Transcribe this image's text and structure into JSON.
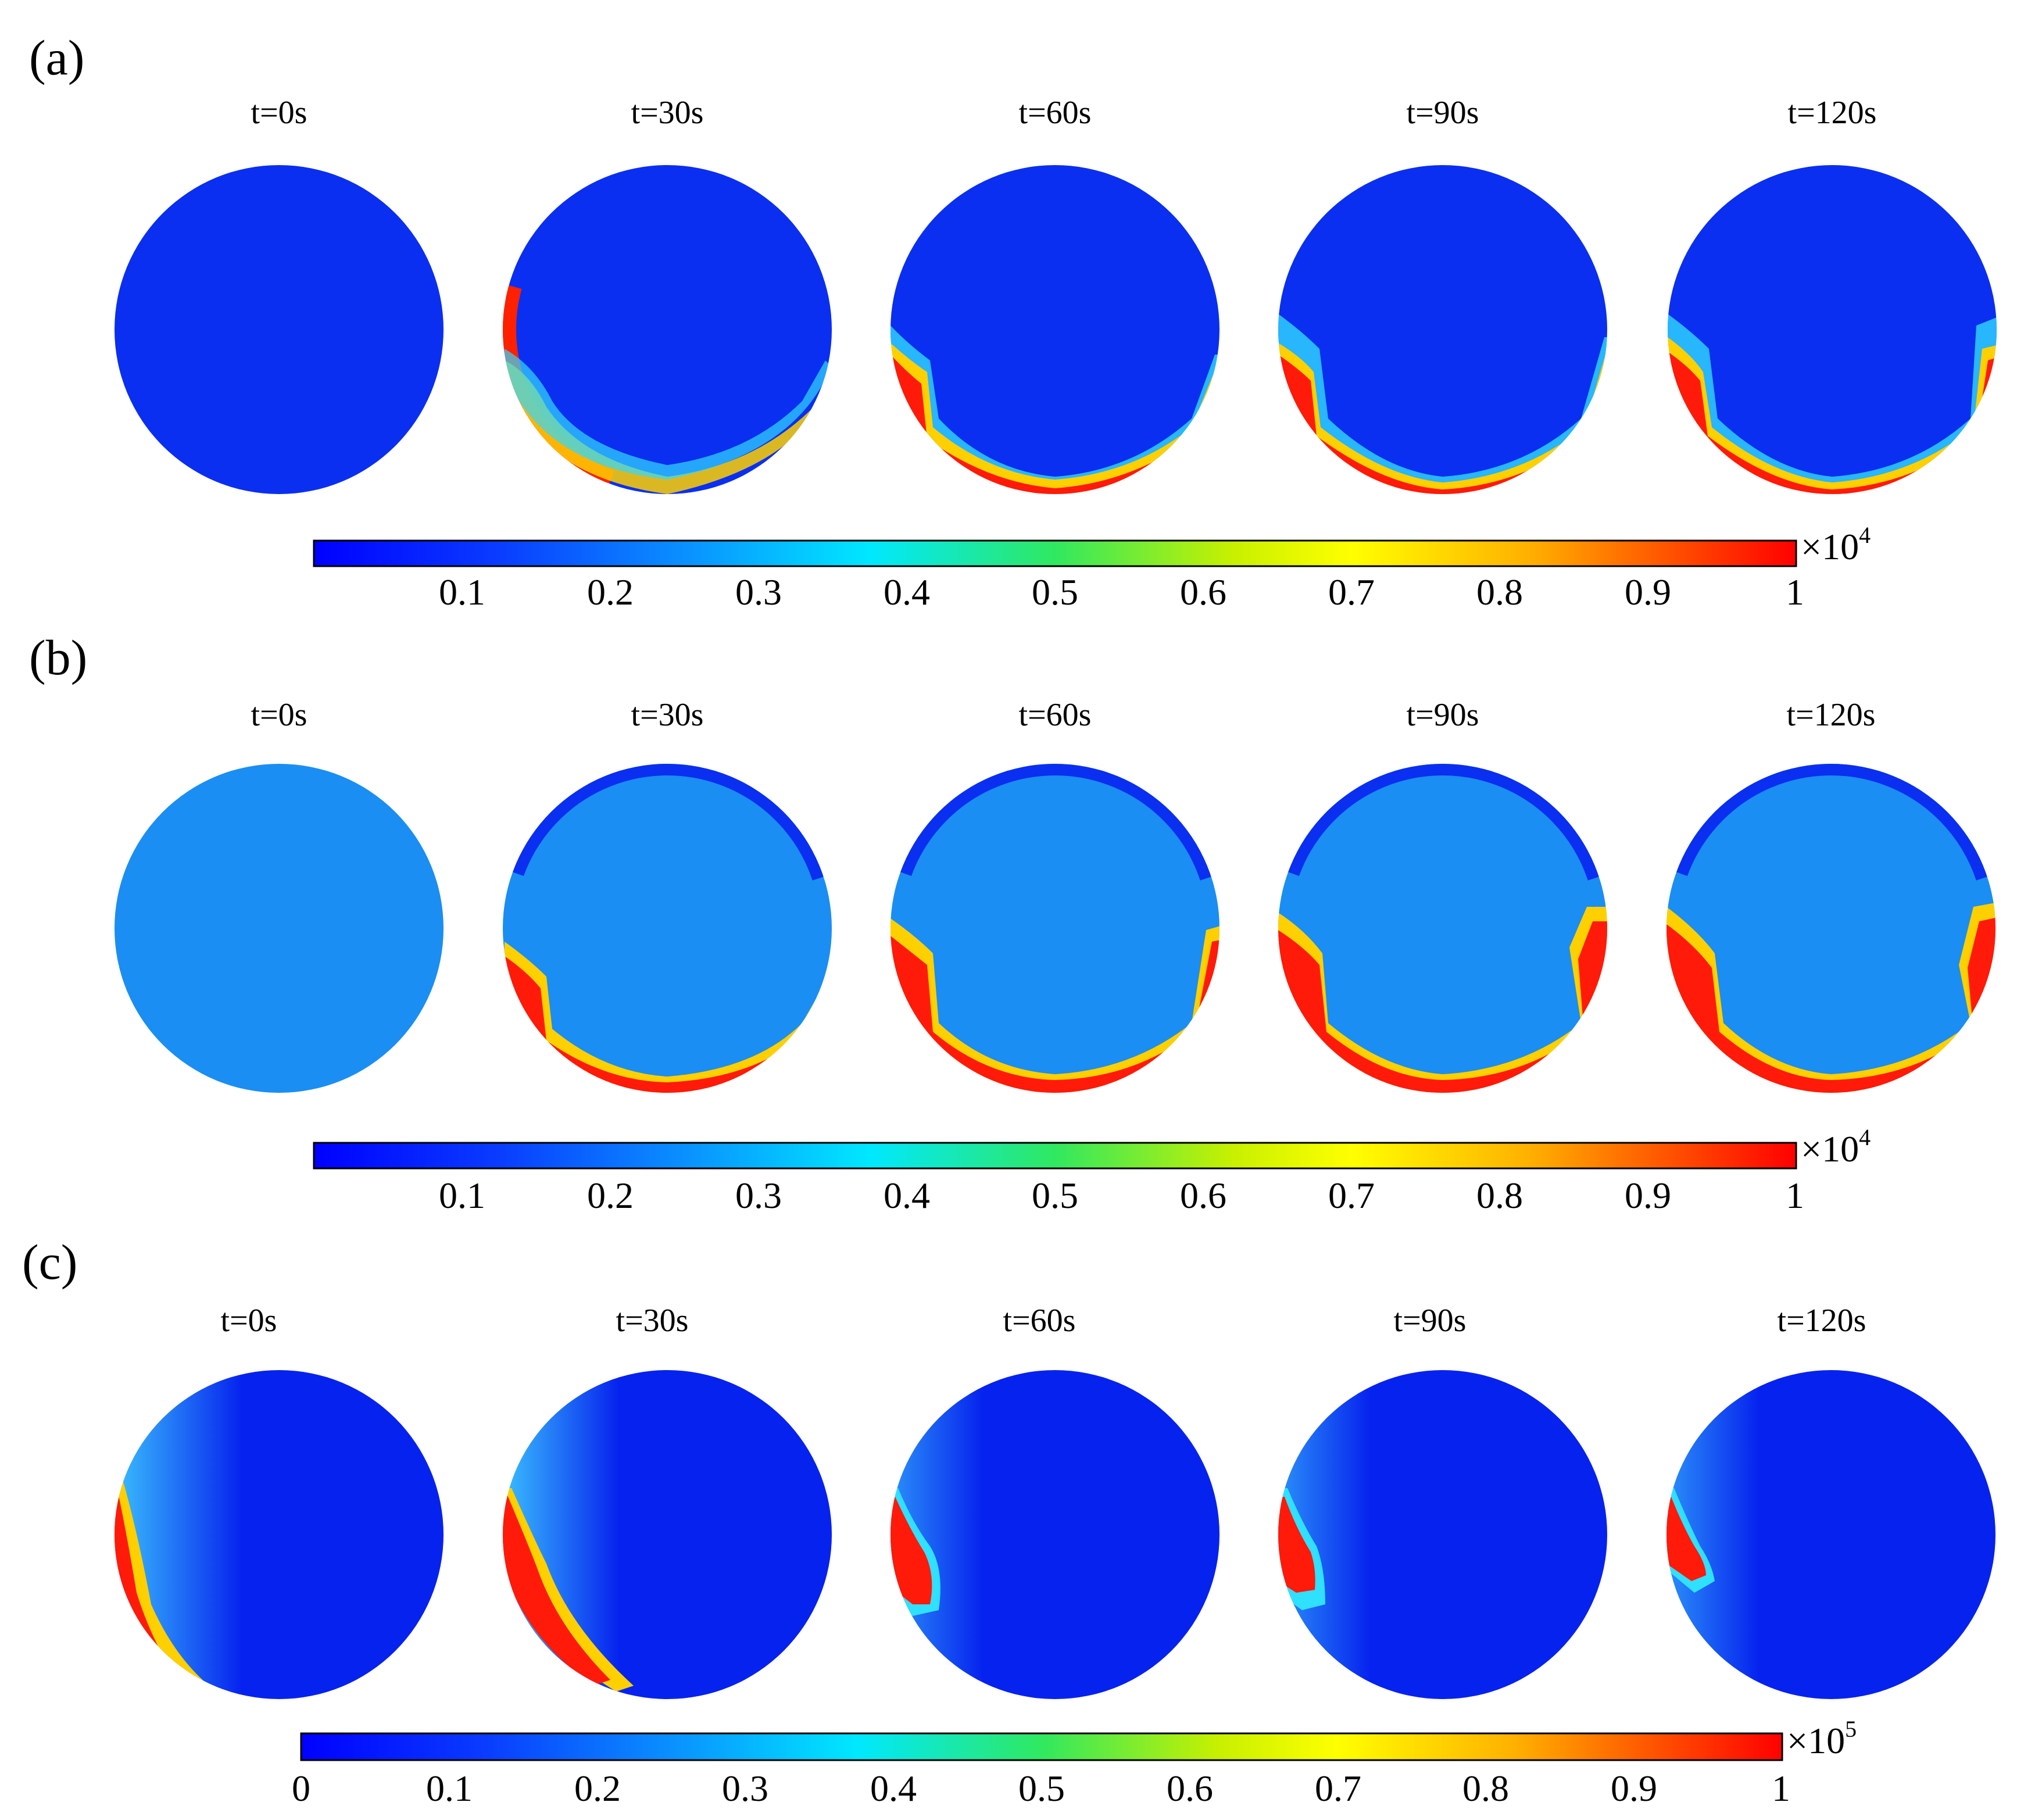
{
  "panels": [
    {
      "label": "(a)",
      "time_labels": [
        "t=0s",
        "t=30s",
        "t=60s",
        "t=90s",
        "t=120s"
      ],
      "colorbar": {
        "ticks": [
          "0.1",
          "0.2",
          "0.3",
          "0.4",
          "0.5",
          "0.6",
          "0.7",
          "0.8",
          "0.9",
          "1"
        ],
        "multiplier": "×10",
        "exponent": "4"
      }
    },
    {
      "label": "(b)",
      "time_labels": [
        "t=0s",
        "t=30s",
        "t=60s",
        "t=90s",
        "t=120s"
      ],
      "colorbar": {
        "ticks": [
          "0.1",
          "0.2",
          "0.3",
          "0.4",
          "0.5",
          "0.6",
          "0.7",
          "0.8",
          "0.9",
          "1"
        ],
        "multiplier": "×10",
        "exponent": "4"
      }
    },
    {
      "label": "(c)",
      "time_labels": [
        "t=0s",
        "t=30s",
        "t=60s",
        "t=90s",
        "t=120s"
      ],
      "colorbar": {
        "ticks": [
          "0",
          "0.1",
          "0.2",
          "0.3",
          "0.4",
          "0.5",
          "0.6",
          "0.7",
          "0.8",
          "0.9",
          "1"
        ],
        "multiplier": "×10",
        "exponent": "5"
      }
    }
  ],
  "colormap": [
    "#0000ff",
    "#0080ff",
    "#00ffff",
    "#80ff00",
    "#ffff00",
    "#ff8000",
    "#ff0000"
  ],
  "field_colors": {
    "base_a": "#0a2ff0",
    "base_b": "#1a8ef2",
    "base_c": "#0622ee",
    "hot": "#ff1a0a"
  }
}
